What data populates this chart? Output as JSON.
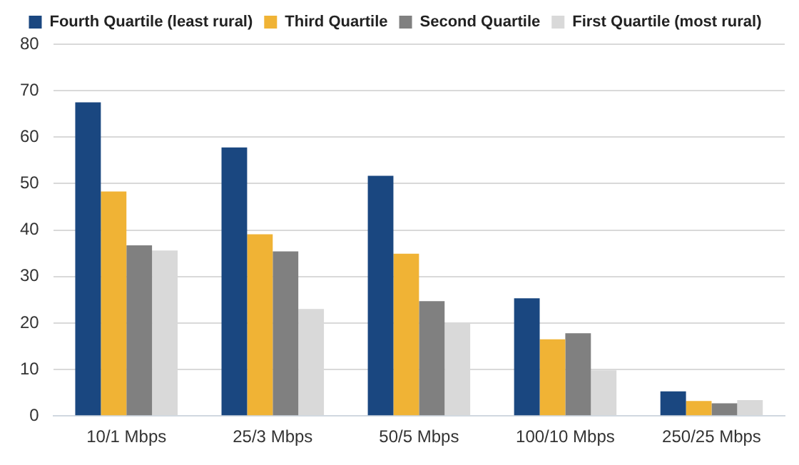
{
  "chart_data": {
    "type": "bar",
    "categories": [
      "10/1 Mbps",
      "25/3 Mbps",
      "50/5 Mbps",
      "100/10 Mbps",
      "250/25 Mbps"
    ],
    "series": [
      {
        "name": "Fourth Quartile (least rural)",
        "color": "#1a4780",
        "values": [
          67.5,
          57.8,
          51.7,
          25.3,
          5.3
        ]
      },
      {
        "name": "Third Quartile",
        "color": "#f0b335",
        "values": [
          48.3,
          39.1,
          34.9,
          16.5,
          3.2
        ]
      },
      {
        "name": "Second Quartile",
        "color": "#808080",
        "values": [
          36.7,
          35.4,
          24.7,
          17.8,
          2.7
        ]
      },
      {
        "name": "First Quartile (most rural)",
        "color": "#d9d9d9",
        "values": [
          35.6,
          23,
          20,
          9.8,
          3.4
        ]
      }
    ],
    "ylim": [
      0,
      80
    ],
    "yticks": [
      0,
      10,
      20,
      30,
      40,
      50,
      60,
      70,
      80
    ],
    "grid": "y",
    "legend": "top"
  }
}
